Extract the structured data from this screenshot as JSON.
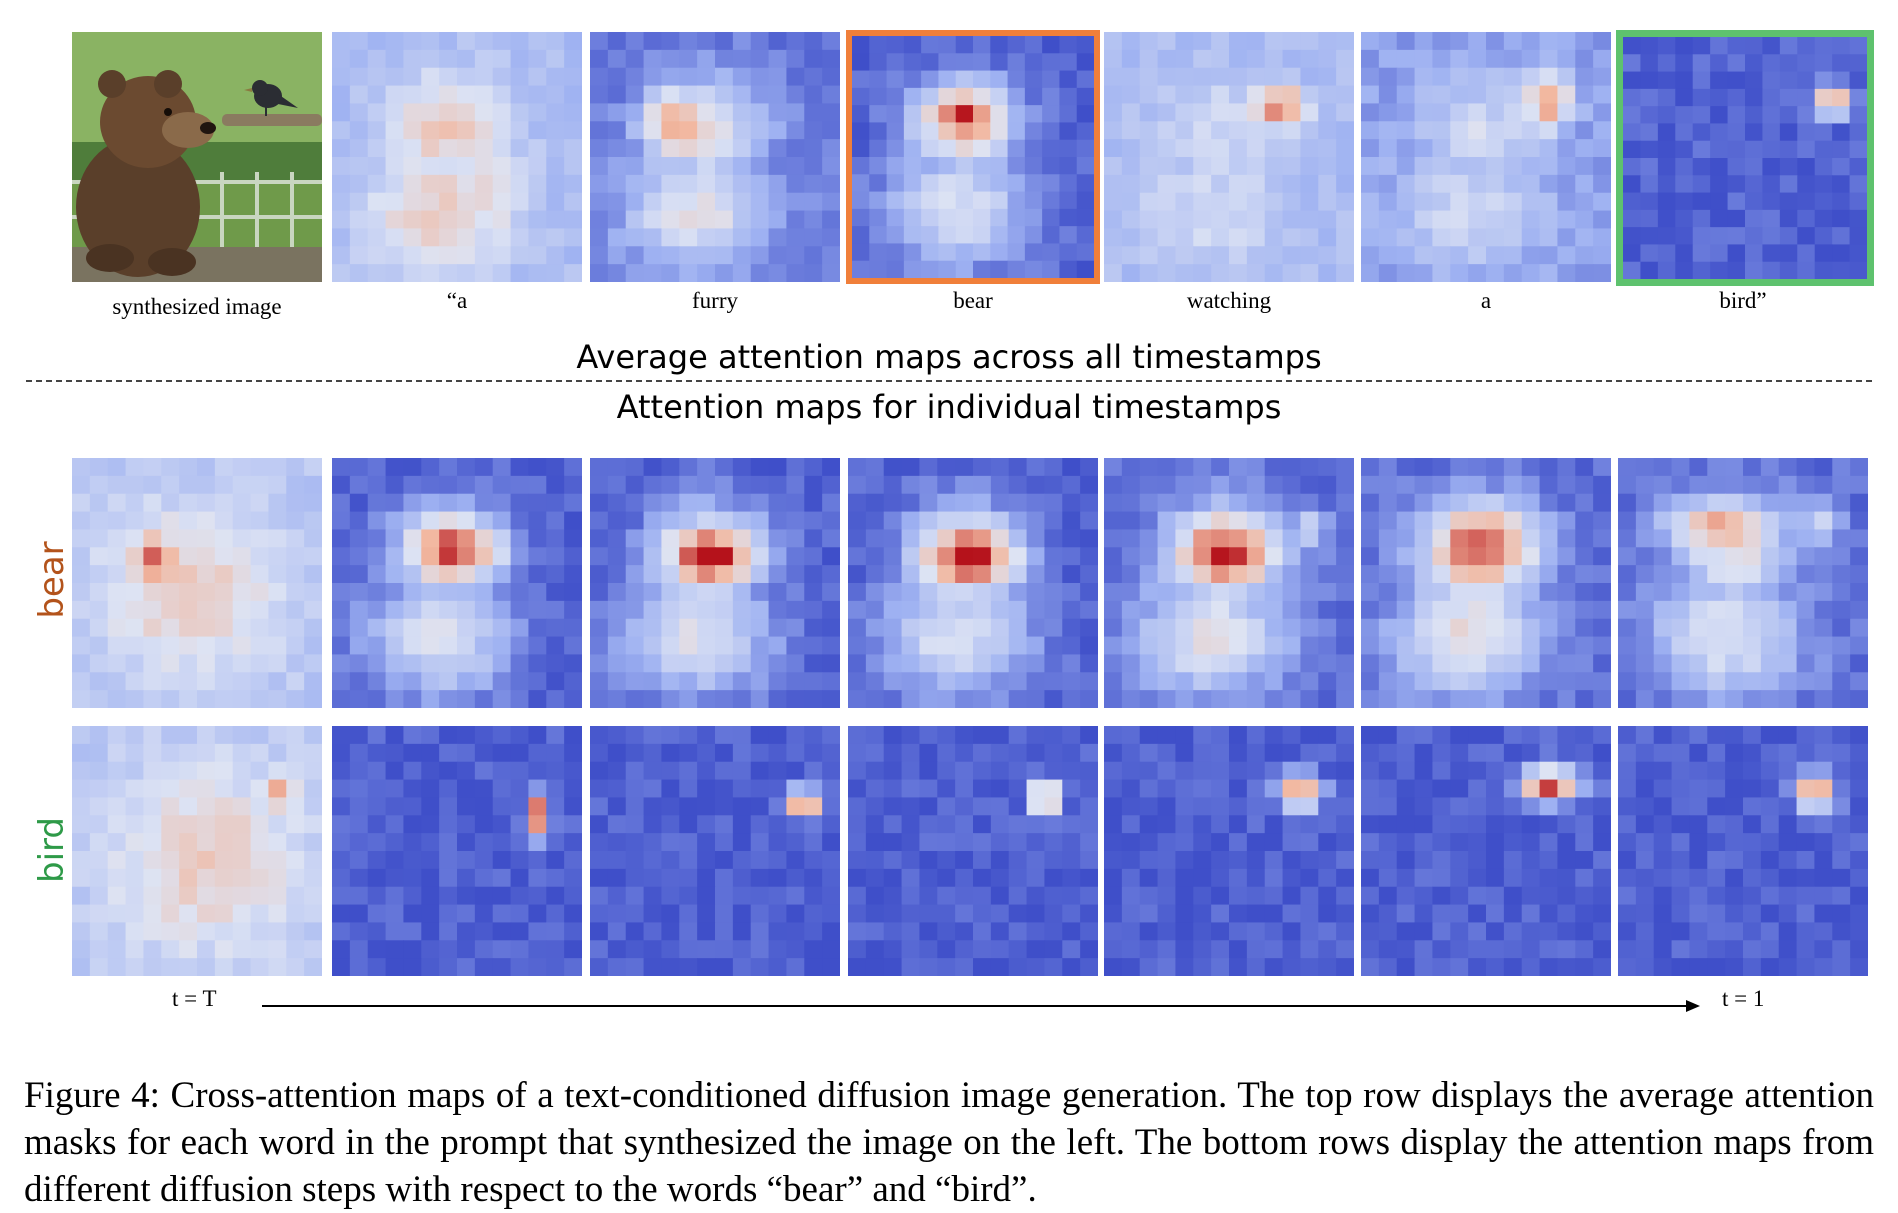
{
  "figure": {
    "top_row_words": [
      {
        "label": "synthesized image"
      },
      {
        "label": "“a"
      },
      {
        "label": "furry"
      },
      {
        "label": "bear",
        "highlight": "#f07f3a"
      },
      {
        "label": "watching"
      },
      {
        "label": "a"
      },
      {
        "label": "bird”",
        "highlight": "#5ec26e"
      }
    ],
    "heading_average": "Average attention maps across all timestamps",
    "heading_individual": "Attention maps for individual  timestamps",
    "rows": [
      {
        "label": "bear",
        "color": "#b3531b"
      },
      {
        "label": "bird",
        "color": "#2e9a48"
      }
    ],
    "time_start": "t = T",
    "time_end": "t = 1",
    "caption_line1": "Figure 4: Cross-attention maps of a text-conditioned diffusion image generation. The top row displays the average attention masks for each word in the prompt that synthesized the image on the left. The bottom rows display the attention maps from different diffusion steps with respect to the words “bear” and “bird”."
  },
  "colors": {
    "cold": "#3f4fc9",
    "cool": "#9fb2f2",
    "neutral": "#dde3f3",
    "warm": "#f2b8a0",
    "hot": "#b5121b"
  }
}
